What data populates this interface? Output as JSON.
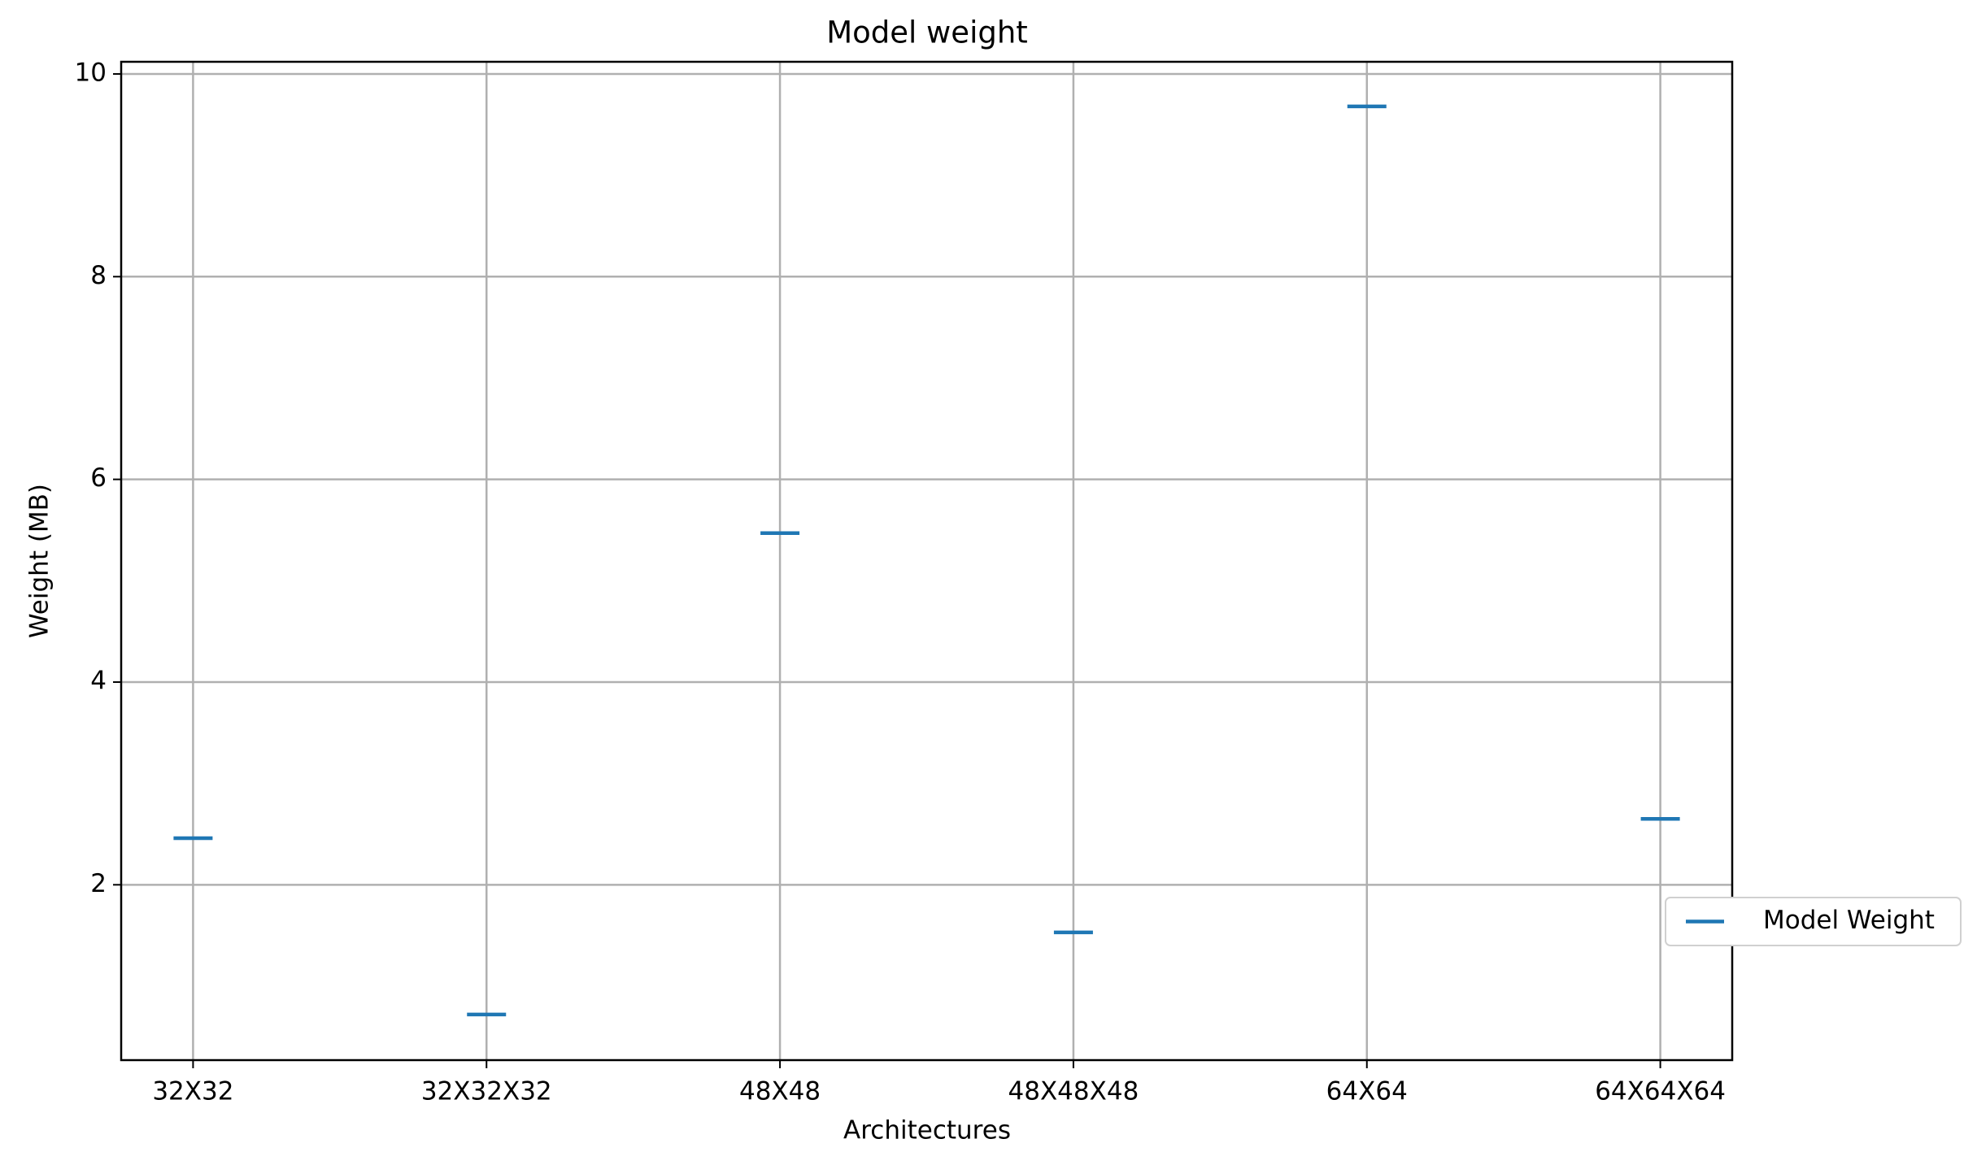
{
  "chart_data": {
    "type": "scatter",
    "title": "Model weight",
    "x_label": "Architectures",
    "y_label": "Weight (MB)",
    "categories": [
      "32X32",
      "32X32X32",
      "48X48",
      "48X48X48",
      "64X64",
      "64X64X64"
    ],
    "series": [
      {
        "name": "Model Weight",
        "color": "#1f77b4",
        "marker": "_",
        "values": [
          2.46,
          0.72,
          5.47,
          1.53,
          9.68,
          2.65
        ]
      }
    ],
    "ylim": [
      0.27,
      10.12
    ],
    "yticks": [
      2,
      4,
      6,
      8,
      10
    ],
    "grid": true,
    "legend": "right"
  }
}
